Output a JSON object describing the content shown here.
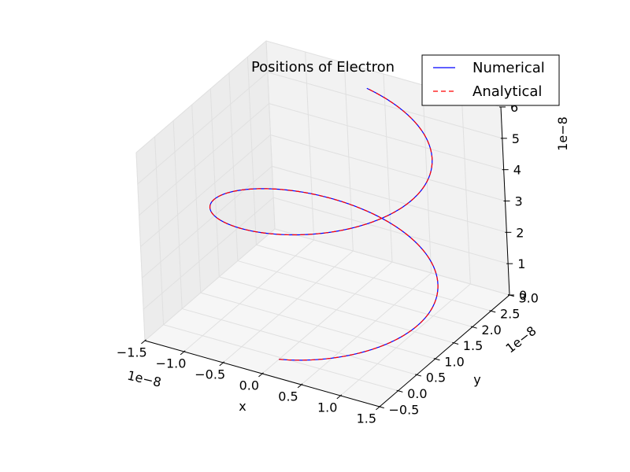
{
  "chart_data": {
    "type": "line",
    "projection": "3d",
    "title": "Positions of Electron",
    "xlabel": "x",
    "ylabel": "y",
    "zlabel": "",
    "x_offset_text": "1e−8",
    "y_offset_text": "1e−8",
    "z_offset_text": "1e−8",
    "xlim": [
      -1.5,
      1.5
    ],
    "ylim": [
      -0.5,
      3.0
    ],
    "zlim": [
      0,
      6
    ],
    "x_ticks": [
      "−1.5",
      "−1.0",
      "−0.5",
      "0.0",
      "0.5",
      "1.0",
      "1.5"
    ],
    "y_ticks": [
      "−0.5",
      "0.0",
      "0.5",
      "1.0",
      "1.5",
      "2.0",
      "2.5",
      "3.0"
    ],
    "z_ticks": [
      "0",
      "1",
      "2",
      "3",
      "4",
      "5",
      "6"
    ],
    "grid": true,
    "legend_position": "top-right",
    "scale": "1e-8",
    "helix": {
      "center_x": 0.0,
      "center_y": 1.25,
      "radius": 1.3,
      "turns": 1.5,
      "z_start": 0.0,
      "z_end": 6.0
    },
    "series": [
      {
        "name": "Numerical",
        "color": "#0000ff",
        "style": "solid"
      },
      {
        "name": "Analytical",
        "color": "#ff0000",
        "style": "dashed"
      }
    ]
  }
}
